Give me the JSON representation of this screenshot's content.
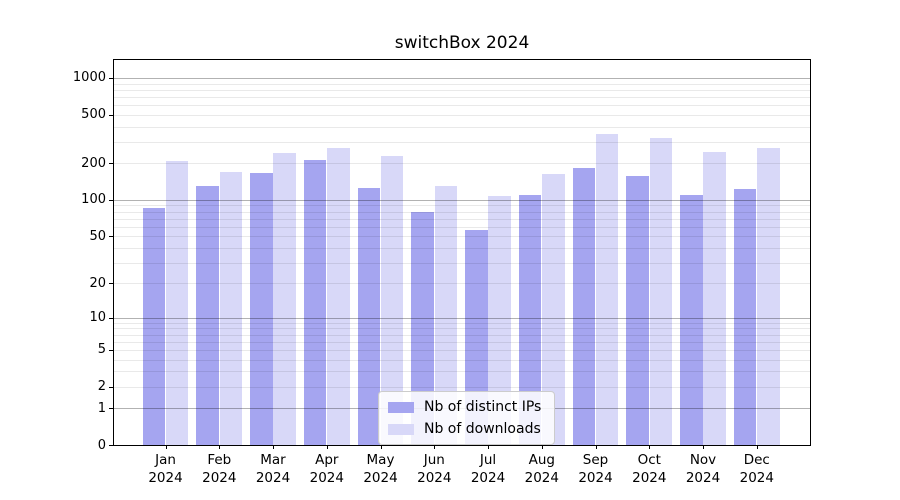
{
  "chart_data": {
    "type": "bar",
    "title": "switchBox 2024",
    "categories": [
      "Jan 2024",
      "Feb 2024",
      "Mar 2024",
      "Apr 2024",
      "May 2024",
      "Jun 2024",
      "Jul 2024",
      "Aug 2024",
      "Sep 2024",
      "Oct 2024",
      "Nov 2024",
      "Dec 2024"
    ],
    "series": [
      {
        "name": "Nb of distinct IPs",
        "color": "#a5a5f0",
        "values": [
          85,
          131,
          167,
          214,
          125,
          79,
          56,
          109,
          184,
          158,
          110,
          123
        ]
      },
      {
        "name": "Nb of downloads",
        "color": "#d8d8f8",
        "values": [
          209,
          168,
          244,
          268,
          229,
          131,
          107,
          163,
          345,
          324,
          246,
          269
        ]
      }
    ],
    "xlabel": "",
    "ylabel": "",
    "yscale": "log1p",
    "ylim": [
      0,
      1400
    ],
    "yticks": [
      1000,
      500,
      200,
      100,
      50,
      20,
      10,
      5,
      2,
      1,
      0
    ],
    "grid": {
      "major_values": [
        1,
        10,
        100,
        1000
      ],
      "minor_values": [
        2,
        3,
        4,
        5,
        6,
        7,
        8,
        9,
        20,
        30,
        40,
        50,
        60,
        70,
        80,
        90,
        200,
        300,
        400,
        500,
        600,
        700,
        800,
        900
      ]
    },
    "legend_position": "lower center",
    "axis_color": "#000000",
    "background_color": "#ffffff"
  }
}
